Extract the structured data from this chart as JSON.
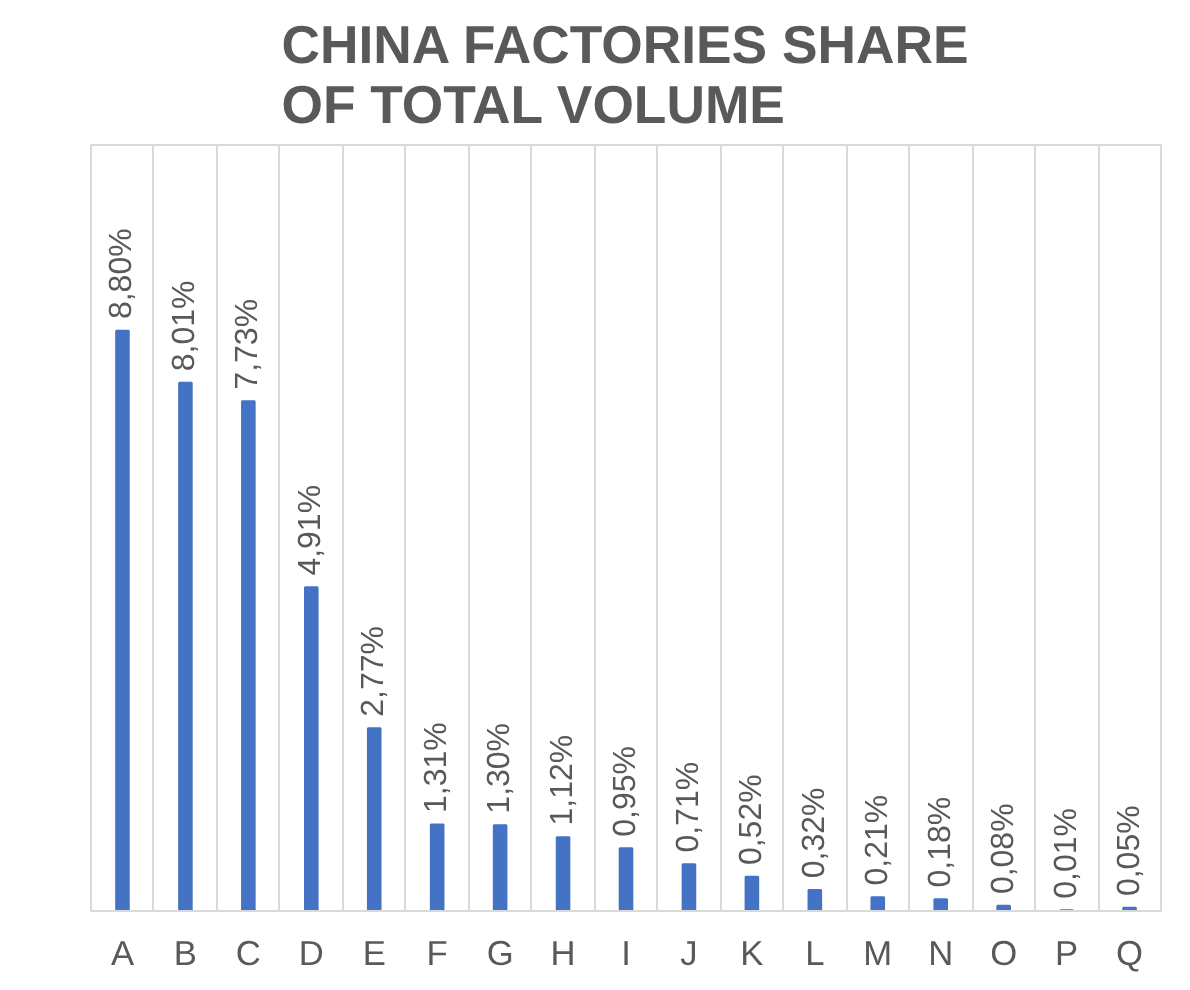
{
  "chart_data": {
    "type": "bar",
    "title": "CHINA FACTORIES SHARE OF TOTAL VOLUME",
    "categories": [
      "A",
      "B",
      "C",
      "D",
      "E",
      "F",
      "G",
      "H",
      "I",
      "J",
      "K",
      "L",
      "M",
      "N",
      "O",
      "P",
      "Q"
    ],
    "values": [
      8.8,
      8.01,
      7.73,
      4.91,
      2.77,
      1.31,
      1.3,
      1.12,
      0.95,
      0.71,
      0.52,
      0.32,
      0.21,
      0.18,
      0.08,
      0.01,
      0.05
    ],
    "value_labels": [
      "8,80%",
      "8,01%",
      "7,73%",
      "4,91%",
      "2,77%",
      "1,31%",
      "1,30%",
      "1,12%",
      "0,95%",
      "0,71%",
      "0,52%",
      "0,32%",
      "0,21%",
      "0,18%",
      "0,08%",
      "0,01%",
      "0,05%"
    ],
    "color": "#4472c4",
    "grid": "x"
  }
}
